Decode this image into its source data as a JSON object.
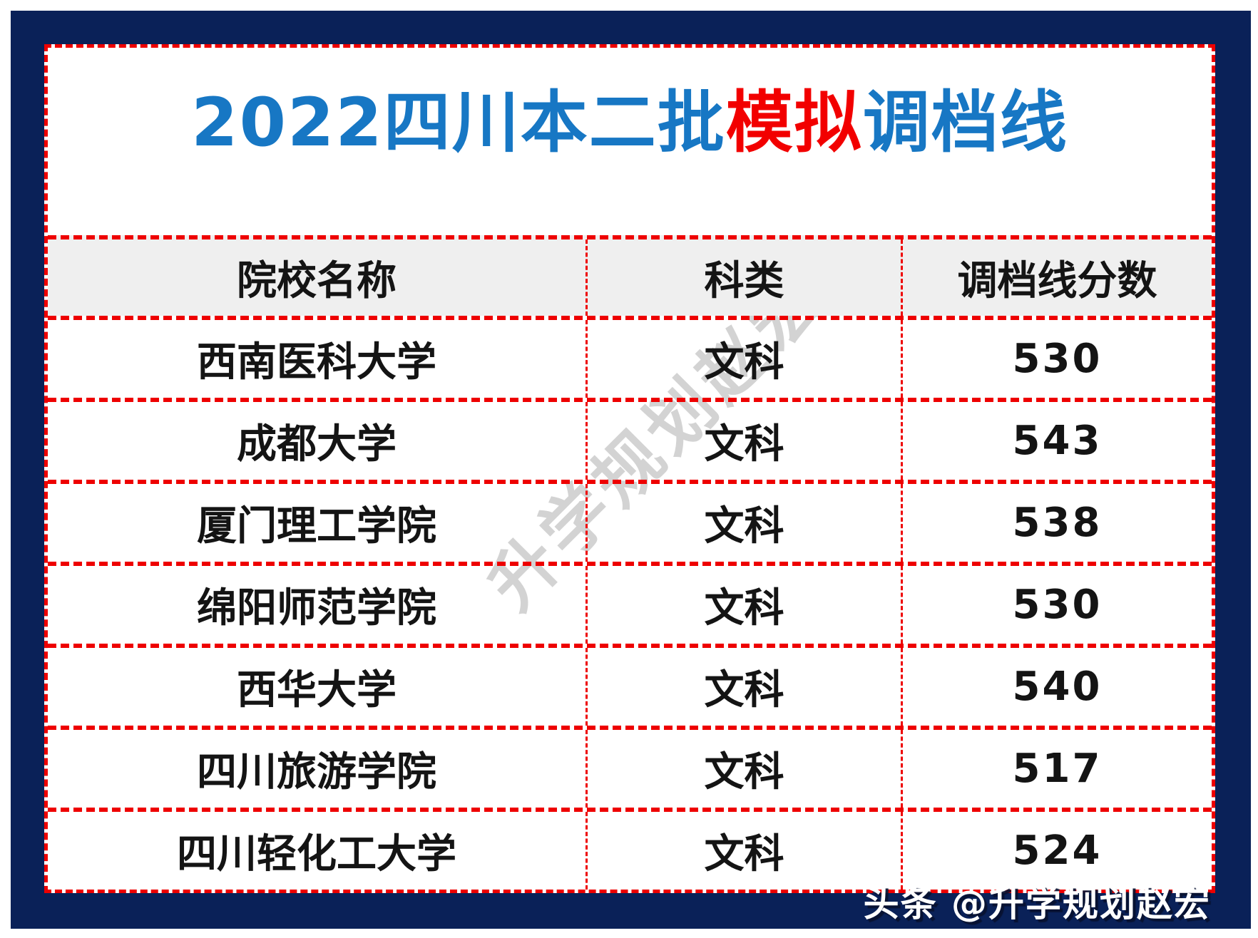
{
  "title": {
    "part_blue_left": "2022四川本二批",
    "part_red": "模拟",
    "part_blue_right": "调档线"
  },
  "table": {
    "headers": [
      "院校名称",
      "科类",
      "调档线分数"
    ],
    "rows": [
      {
        "school": "西南医科大学",
        "category": "文科",
        "score": "530"
      },
      {
        "school": "成都大学",
        "category": "文科",
        "score": "543"
      },
      {
        "school": "厦门理工学院",
        "category": "文科",
        "score": "538"
      },
      {
        "school": "绵阳师范学院",
        "category": "文科",
        "score": "530"
      },
      {
        "school": "西华大学",
        "category": "文科",
        "score": "540"
      },
      {
        "school": "四川旅游学院",
        "category": "文科",
        "score": "517"
      },
      {
        "school": "四川轻化工大学",
        "category": "文科",
        "score": "524"
      }
    ]
  },
  "watermark": "升学规划赵宏",
  "attribution": "头条 @升学规划赵宏",
  "colors": {
    "frame_navy": "#0a2158",
    "dashed_red": "#ee0000",
    "title_blue": "#1777c4",
    "title_red": "#f20000",
    "header_bg": "#efefef",
    "body_text": "#141414",
    "watermark_gray": "#b9b9b9"
  }
}
